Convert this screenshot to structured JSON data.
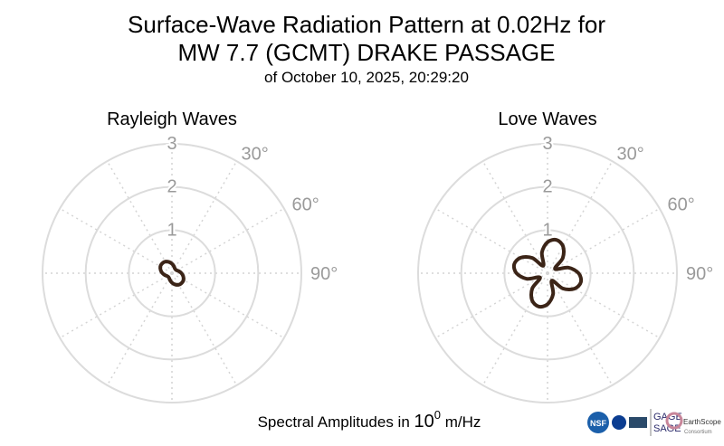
{
  "title_lines": [
    "Surface-Wave Radiation Pattern at 0.02Hz for",
    "MW 7.7 (GCMT) DRAKE PASSAGE"
  ],
  "subtitle": "of October 10, 2025, 20:29:20",
  "footer": {
    "text": "Spectral Amplitudes in ",
    "base": "10",
    "exponent": "0",
    "unit": " m/Hz"
  },
  "logos": {
    "nsf": "NSF",
    "gage": "GAGE",
    "sage": "SAGE",
    "earthscope": "EarthScope",
    "consortium": "Consortium"
  },
  "chart_data": [
    {
      "type": "polar",
      "title": "Rayleigh Waves",
      "color": "#3b2417",
      "theta": [
        0,
        15,
        30,
        45,
        60,
        75,
        90,
        105,
        120,
        135,
        150,
        165,
        180,
        195,
        210,
        225,
        240,
        255,
        270,
        285,
        300,
        315,
        330,
        345
      ],
      "values": [
        0.22,
        0.17,
        0.13,
        0.12,
        0.13,
        0.17,
        0.22,
        0.27,
        0.31,
        0.32,
        0.31,
        0.27,
        0.22,
        0.17,
        0.13,
        0.12,
        0.13,
        0.17,
        0.22,
        0.27,
        0.31,
        0.32,
        0.31,
        0.27
      ],
      "rlim": [
        0,
        3
      ],
      "rticks": [
        1,
        2,
        3
      ],
      "thetaticks": [
        {
          "value": 30,
          "label": "30°"
        },
        {
          "value": 60,
          "label": "60°"
        },
        {
          "value": 90,
          "label": "90°"
        }
      ],
      "grid": true
    },
    {
      "type": "polar",
      "title": "Love Waves",
      "color": "#3b2417",
      "theta": [
        0,
        15,
        30,
        45,
        60,
        75,
        90,
        105,
        120,
        135,
        150,
        165,
        180,
        195,
        210,
        225,
        240,
        255,
        270,
        285,
        300,
        315,
        330,
        345
      ],
      "values": [
        0.72,
        0.8,
        0.72,
        0.5,
        0.2,
        0.5,
        0.72,
        0.8,
        0.72,
        0.5,
        0.2,
        0.5,
        0.72,
        0.8,
        0.72,
        0.5,
        0.2,
        0.5,
        0.72,
        0.8,
        0.72,
        0.5,
        0.2,
        0.5
      ],
      "rlim": [
        0,
        3
      ],
      "rticks": [
        1,
        2,
        3
      ],
      "thetaticks": [
        {
          "value": 30,
          "label": "30°"
        },
        {
          "value": 60,
          "label": "60°"
        },
        {
          "value": 90,
          "label": "90°"
        }
      ],
      "grid": true
    }
  ]
}
